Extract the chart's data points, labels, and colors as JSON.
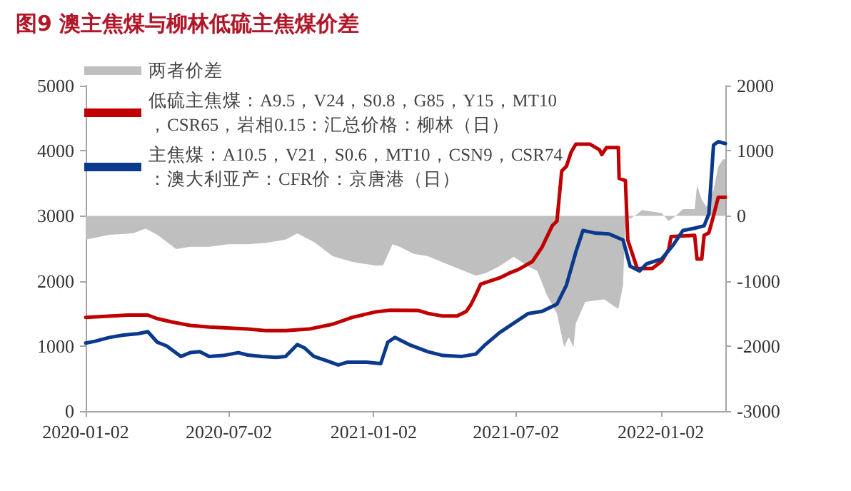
{
  "chart_data": {
    "type": "line",
    "title": "图9 澳主焦煤与柳林低硫主焦煤价差",
    "legend": "top left",
    "marker": "none",
    "xlim": [
      "2020-01-02",
      "2022-03-25"
    ],
    "xticks": [
      "2020-01-02",
      "2020-07-02",
      "2021-01-02",
      "2021-07-02",
      "2022-01-02"
    ],
    "ylim": [
      0,
      5000
    ],
    "yticks": [
      0,
      1000,
      2000,
      3000,
      4000,
      5000
    ],
    "y2lim": [
      -3000,
      2000
    ],
    "y2ticks": [
      -3000,
      -2000,
      -1000,
      0,
      1000,
      2000
    ],
    "series": [
      {
        "name": "两者价差",
        "type": "area",
        "axis": "y2",
        "color": "#bfbfbf",
        "x": [
          "2020-01-02",
          "2020-02-01",
          "2020-03-02",
          "2020-03-18",
          "2020-04-02",
          "2020-04-26",
          "2020-05-14",
          "2020-06-07",
          "2020-07-01",
          "2020-07-26",
          "2020-08-19",
          "2020-09-12",
          "2020-09-27",
          "2020-10-18",
          "2020-11-11",
          "2020-12-06",
          "2021-01-05",
          "2021-01-14",
          "2021-01-26",
          "2021-02-04",
          "2021-02-22",
          "2021-03-12",
          "2021-04-12",
          "2021-05-12",
          "2021-05-24",
          "2021-06-11",
          "2021-06-29",
          "2021-07-17",
          "2021-07-29",
          "2021-08-10",
          "2021-08-23",
          "2021-09-01",
          "2021-09-07",
          "2021-09-13",
          "2021-09-16",
          "2021-09-28",
          "2021-10-22",
          "2021-11-09",
          "2021-11-15",
          "2021-11-18",
          "2021-11-24",
          "2021-12-03",
          "2021-12-09",
          "2021-12-22",
          "2022-01-03",
          "2022-01-12",
          "2022-01-21",
          "2022-01-30",
          "2022-02-14",
          "2022-02-17",
          "2022-02-23",
          "2022-03-01",
          "2022-03-07",
          "2022-03-10",
          "2022-03-16",
          "2022-03-22",
          "2022-03-25"
        ],
        "values": [
          -365,
          -292,
          -270,
          -197,
          -292,
          -511,
          -475,
          -475,
          -438,
          -438,
          -416,
          -365,
          -270,
          -402,
          -620,
          -708,
          -767,
          -760,
          -438,
          -475,
          -584,
          -620,
          -774,
          -920,
          -883,
          -774,
          -628,
          -774,
          -847,
          -1212,
          -1504,
          -2015,
          -1869,
          -2015,
          -1650,
          -1321,
          -1285,
          -1431,
          -1066,
          0,
          -44,
          29,
          88,
          66,
          44,
          -80,
          0,
          102,
          102,
          467,
          248,
          139,
          321,
          394,
          759,
          869,
          869
        ]
      },
      {
        "name": "低硫主焦煤：A9.5，V24，S0.8，G85，Y15，MT10，CSR65，岩相0.15：汇总价格：柳林（日）",
        "color": "#c00000",
        "x": [
          "2020-01-02",
          "2020-02-25",
          "2020-03-21",
          "2020-04-02",
          "2020-04-20",
          "2020-05-14",
          "2020-06-07",
          "2020-07-26",
          "2020-08-19",
          "2020-09-12",
          "2020-10-12",
          "2020-11-11",
          "2020-12-06",
          "2021-01-05",
          "2021-01-23",
          "2021-02-28",
          "2021-03-12",
          "2021-03-31",
          "2021-04-18",
          "2021-04-30",
          "2021-05-06",
          "2021-05-12",
          "2021-05-18",
          "2021-06-11",
          "2021-06-23",
          "2021-07-05",
          "2021-07-23",
          "2021-08-04",
          "2021-08-17",
          "2021-08-23",
          "2021-08-29",
          "2021-09-04",
          "2021-09-10",
          "2021-09-16",
          "2021-10-04",
          "2021-10-16",
          "2021-10-19",
          "2021-10-25",
          "2021-11-09",
          "2021-11-10",
          "2021-11-18",
          "2021-11-21",
          "2021-11-27",
          "2021-12-03",
          "2021-12-22",
          "2022-01-03",
          "2022-01-12",
          "2022-01-15",
          "2022-02-14",
          "2022-02-17",
          "2022-02-23",
          "2022-02-26",
          "2022-03-04",
          "2022-03-09",
          "2022-03-16",
          "2022-03-25"
        ],
        "values": [
          1440,
          1475,
          1475,
          1420,
          1370,
          1315,
          1290,
          1260,
          1235,
          1235,
          1260,
          1335,
          1440,
          1525,
          1550,
          1545,
          1500,
          1460,
          1460,
          1533,
          1643,
          1790,
          1950,
          2045,
          2117,
          2175,
          2300,
          2518,
          2847,
          2920,
          3686,
          3760,
          3978,
          4100,
          4100,
          4015,
          3941,
          4050,
          4050,
          3576,
          3540,
          2628,
          2409,
          2190,
          2190,
          2300,
          2483,
          2680,
          2700,
          2336,
          2336,
          2700,
          2737,
          2956,
          3285,
          3285
        ]
      },
      {
        "name": "主焦煤：A10.5，V21，S0.6，MT10，CSN9，CSR74：澳大利亚产：CFR价：京唐港（日）",
        "color": "#0b3a8c",
        "x": [
          "2020-01-02",
          "2020-01-14",
          "2020-02-01",
          "2020-02-19",
          "2020-03-09",
          "2020-03-21",
          "2020-04-02",
          "2020-04-14",
          "2020-05-02",
          "2020-05-14",
          "2020-05-26",
          "2020-06-07",
          "2020-06-25",
          "2020-07-14",
          "2020-07-26",
          "2020-08-13",
          "2020-08-31",
          "2020-09-12",
          "2020-09-27",
          "2020-10-06",
          "2020-10-18",
          "2020-11-05",
          "2020-11-18",
          "2020-11-30",
          "2020-12-24",
          "2021-01-11",
          "2021-01-20",
          "2021-01-29",
          "2021-02-16",
          "2021-03-12",
          "2021-03-31",
          "2021-04-24",
          "2021-05-12",
          "2021-05-24",
          "2021-06-11",
          "2021-06-29",
          "2021-07-17",
          "2021-08-04",
          "2021-08-23",
          "2021-09-04",
          "2021-09-16",
          "2021-09-25",
          "2021-10-10",
          "2021-10-28",
          "2021-11-15",
          "2021-11-24",
          "2021-12-06",
          "2021-12-15",
          "2022-01-03",
          "2022-01-18",
          "2022-01-30",
          "2022-02-14",
          "2022-02-26",
          "2022-03-04",
          "2022-03-10",
          "2022-03-16",
          "2022-03-25"
        ],
        "values": [
          1044,
          1073,
          1131,
          1168,
          1190,
          1220,
          1058,
          1000,
          840,
          898,
          912,
          840,
          854,
          898,
          861,
          840,
          825,
          840,
          1022,
          971,
          840,
          766,
          708,
          752,
          752,
          730,
          1058,
          1131,
          1022,
          912,
          854,
          840,
          876,
          1022,
          1204,
          1350,
          1496,
          1533,
          1642,
          1934,
          2445,
          2774,
          2737,
          2722,
          2628,
          2226,
          2153,
          2263,
          2336,
          2555,
          2774,
          2810,
          2847,
          3029,
          4088,
          4139,
          4110
        ]
      }
    ]
  }
}
